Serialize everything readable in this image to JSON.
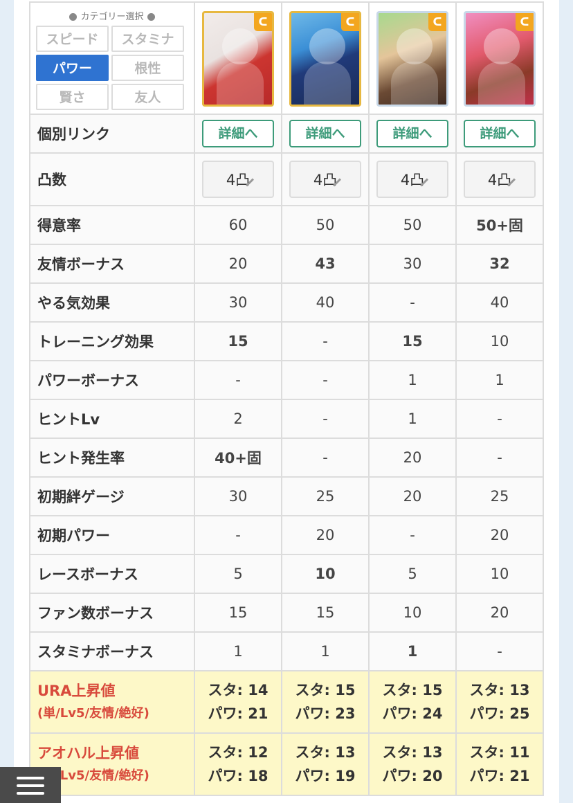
{
  "category": {
    "title": "カテゴリー選択",
    "buttons": [
      "スピード",
      "スタミナ",
      "パワー",
      "根性",
      "賢さ",
      "友人"
    ],
    "active": "パワー"
  },
  "cards": [
    {
      "icon": "power-type-icon",
      "badge": "ᑕ"
    },
    {
      "icon": "power-type-icon",
      "badge": "ᑕ"
    },
    {
      "icon": "power-type-icon",
      "badge": "ᑕ"
    },
    {
      "icon": "power-type-icon",
      "badge": "ᑕ"
    }
  ],
  "rows": {
    "link": {
      "label": "個別リンク",
      "button": "詳細へ"
    },
    "uncap": {
      "label": "凸数",
      "values": [
        "4凸",
        "4凸",
        "4凸",
        "4凸"
      ]
    },
    "stats": [
      {
        "label": "得意率",
        "values": [
          "60",
          "50",
          "50",
          "50+固"
        ],
        "hi": [
          false,
          false,
          false,
          true
        ]
      },
      {
        "label": "友情ボーナス",
        "values": [
          "20",
          "43",
          "30",
          "32"
        ],
        "hi": [
          false,
          true,
          false,
          true
        ]
      },
      {
        "label": "やる気効果",
        "values": [
          "30",
          "40",
          "-",
          "40"
        ],
        "hi": [
          false,
          false,
          false,
          false
        ]
      },
      {
        "label": "トレーニング効果",
        "values": [
          "15",
          "-",
          "15",
          "10"
        ],
        "hi": [
          true,
          false,
          true,
          false
        ]
      },
      {
        "label": "パワーボーナス",
        "values": [
          "-",
          "-",
          "1",
          "1"
        ],
        "hi": [
          false,
          false,
          false,
          false
        ]
      },
      {
        "label": "ヒントLv",
        "values": [
          "2",
          "-",
          "1",
          "-"
        ],
        "hi": [
          false,
          false,
          false,
          false
        ]
      },
      {
        "label": "ヒント発生率",
        "values": [
          "40+固",
          "-",
          "20",
          "-"
        ],
        "hi": [
          true,
          false,
          false,
          false
        ]
      },
      {
        "label": "初期絆ゲージ",
        "values": [
          "30",
          "25",
          "20",
          "25"
        ],
        "hi": [
          false,
          false,
          false,
          false
        ]
      },
      {
        "label": "初期パワー",
        "values": [
          "-",
          "20",
          "-",
          "20"
        ],
        "hi": [
          false,
          false,
          false,
          false
        ]
      },
      {
        "label": "レースボーナス",
        "values": [
          "5",
          "10",
          "5",
          "10"
        ],
        "hi": [
          false,
          true,
          false,
          false
        ]
      },
      {
        "label": "ファン数ボーナス",
        "values": [
          "15",
          "15",
          "10",
          "20"
        ],
        "hi": [
          false,
          false,
          false,
          false
        ]
      },
      {
        "label": "スタミナボーナス",
        "values": [
          "1",
          "1",
          "1",
          "-"
        ],
        "hi": [
          false,
          false,
          true,
          false
        ]
      }
    ],
    "ura": {
      "label1": "URA上昇値",
      "label2": "(単/Lv5/友情/絶好)",
      "values": [
        [
          "スタ: 14",
          "パワ: 21"
        ],
        [
          "スタ: 15",
          "パワ: 23"
        ],
        [
          "スタ: 15",
          "パワ: 24"
        ],
        [
          "スタ: 13",
          "パワ: 25"
        ]
      ]
    },
    "aoharu": {
      "label1": "アオハル上昇値",
      "label2": "(単/Lv5/友情/絶好)",
      "values": [
        [
          "スタ: 12",
          "パワ: 18"
        ],
        [
          "スタ: 13",
          "パワ: 19"
        ],
        [
          "スタ: 13",
          "パワ: 20"
        ],
        [
          "スタ: 11",
          "パワ: 21"
        ]
      ]
    }
  },
  "colors": {
    "accent": "#2f73d1",
    "highlight": "#ea7a24",
    "detail": "#3d9b7a",
    "special_label": "#d84a3c"
  }
}
